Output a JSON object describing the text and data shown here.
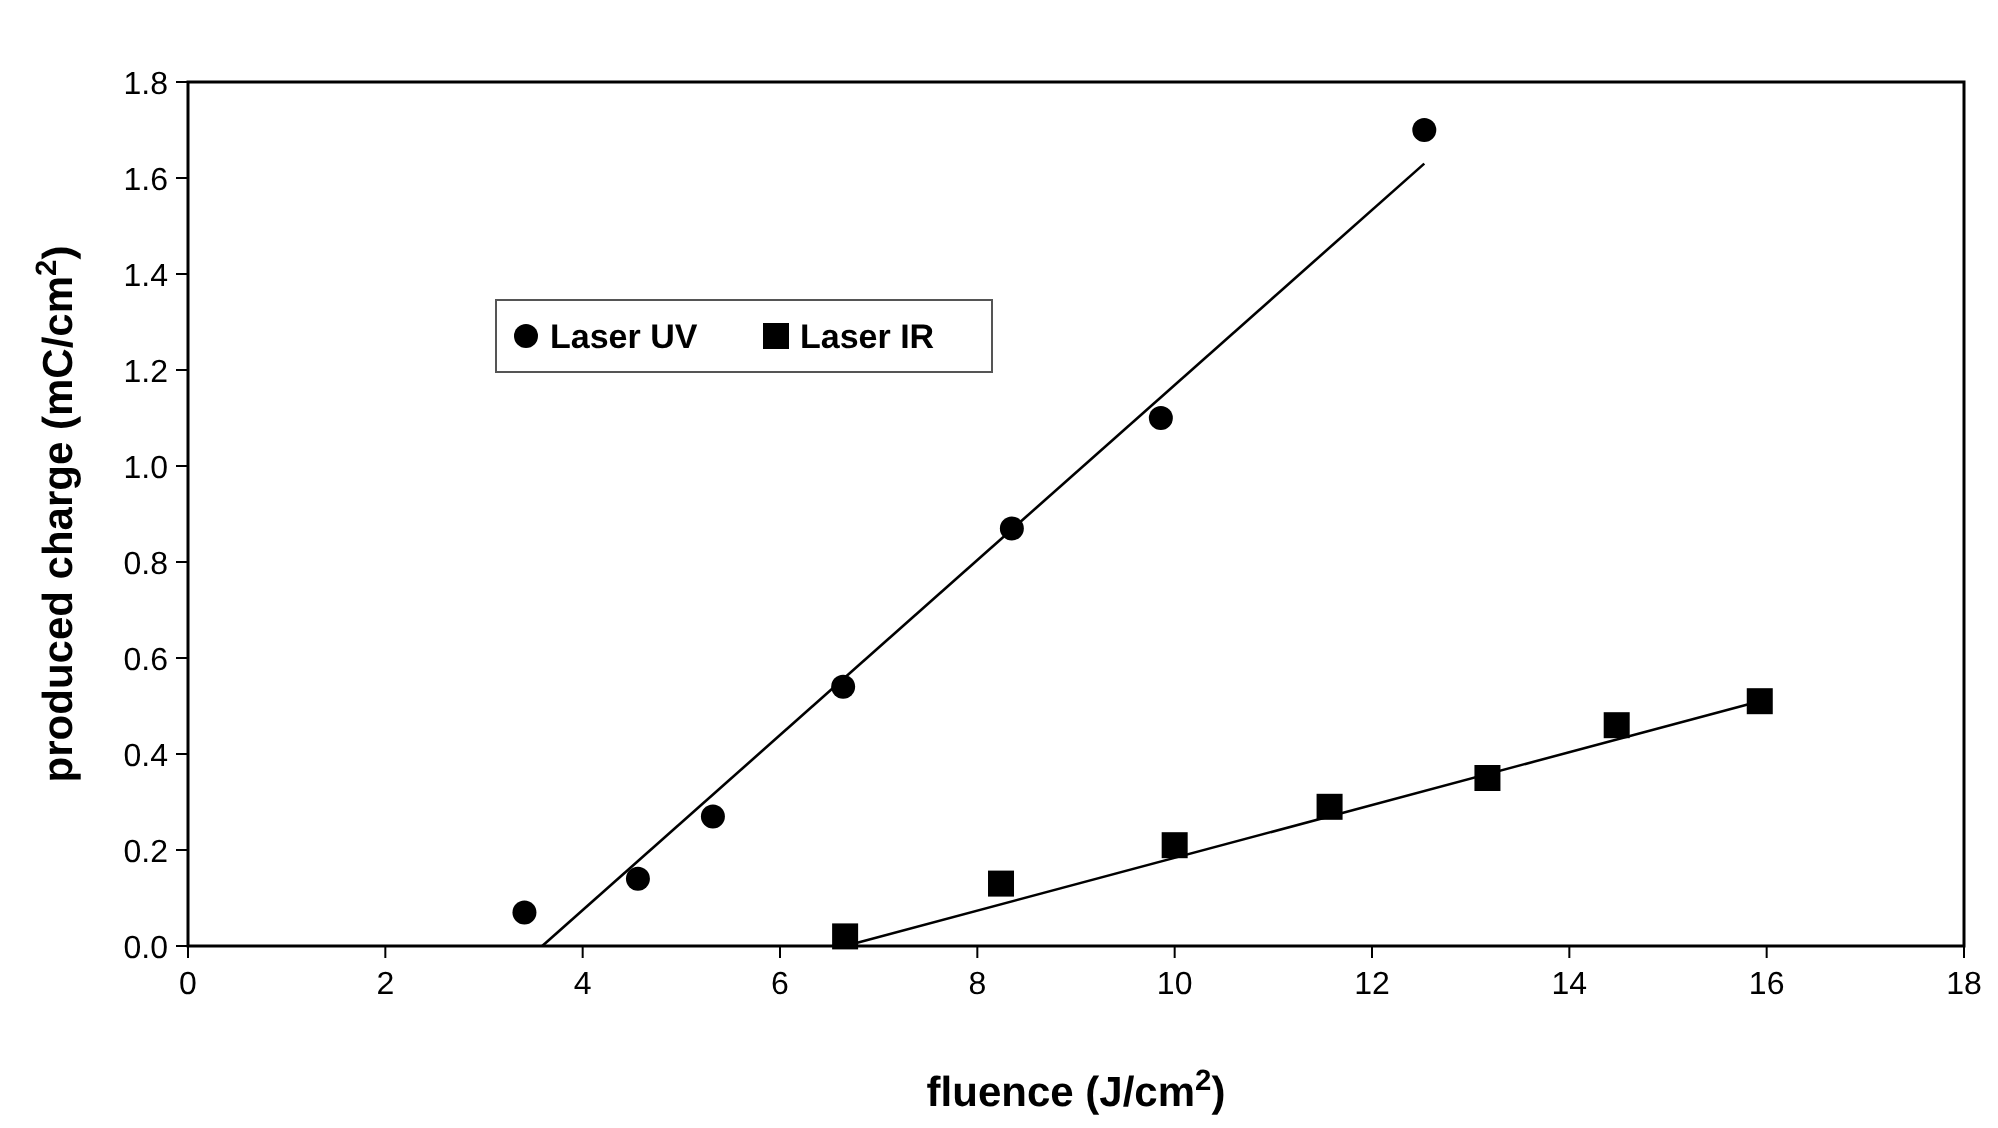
{
  "chart_data": {
    "type": "scatter",
    "xlabel": "fluence (J/cm$^{2}$)",
    "ylabel": "produced charge (mC/cm$^{2}$)",
    "xlim": [
      0,
      18
    ],
    "xticks": [
      0,
      2,
      4,
      6,
      8,
      10,
      12,
      14,
      16,
      18
    ],
    "ylim": [
      0,
      1.8
    ],
    "yticks": [
      {
        "value": 0,
        "label": "0.0"
      },
      {
        "value": 0.2,
        "label": "0.2"
      },
      {
        "value": 0.4,
        "label": "0.4"
      },
      {
        "value": 0.6,
        "label": "0.6"
      },
      {
        "value": 0.8,
        "label": "0.8"
      },
      {
        "value": 1,
        "label": "1.0"
      },
      {
        "value": 1.2,
        "label": "1.2"
      },
      {
        "value": 1.4,
        "label": "1.4"
      },
      {
        "value": 1.6,
        "label": "1.6"
      },
      {
        "value": 1.8,
        "label": "1.8"
      }
    ],
    "grid": false,
    "legend": "left",
    "series": [
      {
        "name": "Laser UV",
        "color": "#000000",
        "marker": "circle",
        "x": [
          3.41,
          4.56,
          5.32,
          6.64,
          8.35,
          9.86,
          12.53
        ],
        "values": [
          0.07,
          0.14,
          0.27,
          0.54,
          0.87,
          1.1,
          1.7
        ]
      },
      {
        "name": "Laser IR",
        "color": "#000000",
        "marker": "square",
        "x": [
          6.66,
          8.24,
          10.0,
          11.57,
          13.17,
          14.48,
          15.93
        ],
        "values": [
          0.02,
          0.13,
          0.21,
          0.29,
          0.35,
          0.46,
          0.51
        ]
      },
      {
        "type": "line",
        "color": "#000000",
        "marker": "none",
        "line_style": "solid",
        "x": [
          3.59,
          12.53
        ],
        "values": [
          0,
          1.63
        ]
      },
      {
        "type": "line",
        "color": "#000000",
        "marker": "none",
        "line_style": "solid",
        "x": [
          6.66,
          15.93
        ],
        "values": [
          0.0,
          0.51
        ]
      }
    ]
  }
}
